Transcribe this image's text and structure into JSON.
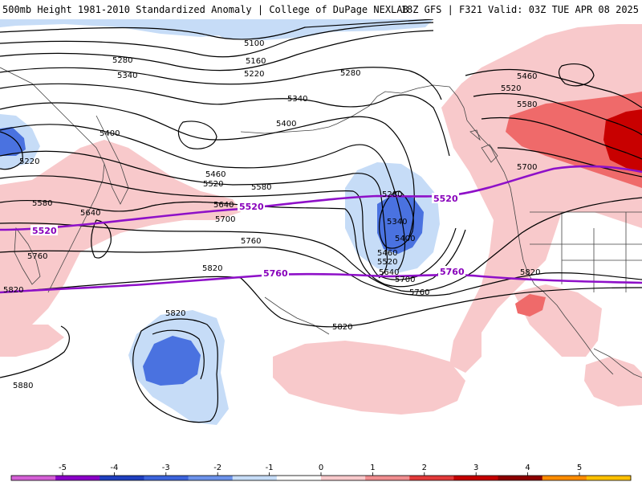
{
  "header": {
    "title": "500mb Height 1981-2010 Standardized Anomaly | College of DuPage NEXLAB",
    "run_info": "18Z GFS | F321 Valid: 03Z TUE APR 08 2025"
  },
  "colors": {
    "anom_neg_weak": "#c6dcf7",
    "anom_neg_mod": "#4a72e0",
    "anom_pos_weak": "#f8c9cb",
    "anom_pos_mod": "#ef6a6a",
    "anom_pos_strong": "#c80000",
    "contour": "#000000",
    "highlight_contour": "#8e10c8",
    "coastline": "#444444"
  },
  "contour_labels": [
    {
      "id": "c-5100",
      "text": "5100"
    },
    {
      "id": "c-5160",
      "text": "5160"
    },
    {
      "id": "c-5220a",
      "text": "5220"
    },
    {
      "id": "c-5280a",
      "text": "5280"
    },
    {
      "id": "c-5280b",
      "text": "5280"
    },
    {
      "id": "c-5340a",
      "text": "5340"
    },
    {
      "id": "c-5340b",
      "text": "5340"
    },
    {
      "id": "c-5400a",
      "text": "5400"
    },
    {
      "id": "c-5400b",
      "text": "5400"
    },
    {
      "id": "c-5220b",
      "text": "5220"
    },
    {
      "id": "c-5460a",
      "text": "5460"
    },
    {
      "id": "c-5520a",
      "text": "5520"
    },
    {
      "id": "c-5580a",
      "text": "5580"
    },
    {
      "id": "c-5580b",
      "text": "5580"
    },
    {
      "id": "c-5640a",
      "text": "5640"
    },
    {
      "id": "c-5640b",
      "text": "5640"
    },
    {
      "id": "c-5700a",
      "text": "5700"
    },
    {
      "id": "c-5760a",
      "text": "5760"
    },
    {
      "id": "c-5760b",
      "text": "5760"
    },
    {
      "id": "c-5820a",
      "text": "5820"
    },
    {
      "id": "c-5820b",
      "text": "5820"
    },
    {
      "id": "c-5820c",
      "text": "5820"
    },
    {
      "id": "c-5820d",
      "text": "5820"
    },
    {
      "id": "c-5880",
      "text": "5880"
    },
    {
      "id": "c-5280c",
      "text": "5280"
    },
    {
      "id": "c-5340c",
      "text": "5340"
    },
    {
      "id": "c-5400c",
      "text": "5400"
    },
    {
      "id": "c-5460b",
      "text": "5460"
    },
    {
      "id": "c-5520b",
      "text": "5520"
    },
    {
      "id": "c-5640c",
      "text": "5640"
    },
    {
      "id": "c-5700b",
      "text": "5700"
    },
    {
      "id": "c-5760c",
      "text": "5760"
    },
    {
      "id": "c-5460c",
      "text": "5460"
    },
    {
      "id": "c-5520c",
      "text": "5520"
    },
    {
      "id": "c-5580c",
      "text": "5580"
    },
    {
      "id": "c-5700c",
      "text": "5700"
    },
    {
      "id": "c-5820e",
      "text": "5820"
    }
  ],
  "highlight_labels": [
    {
      "id": "p-5520a",
      "text": "5520"
    },
    {
      "id": "p-5520b",
      "text": "5520"
    },
    {
      "id": "p-5520c",
      "text": "5520"
    },
    {
      "id": "p-5760a",
      "text": "5760"
    },
    {
      "id": "p-5760b",
      "text": "5760"
    }
  ],
  "colorbar": {
    "ticks": [
      "-5",
      "-4",
      "-3",
      "-2",
      "-1",
      "0",
      "1",
      "2",
      "3",
      "4",
      "5"
    ],
    "colors": [
      "#d45fd6",
      "#8a00c8",
      "#1f3fbf",
      "#3c64dc",
      "#6c92ea",
      "#c6dcf7",
      "#ffffff",
      "#f8c9cb",
      "#f08d8f",
      "#e23a3a",
      "#c40000",
      "#8c0000",
      "#ff8c00",
      "#ffc000"
    ]
  }
}
